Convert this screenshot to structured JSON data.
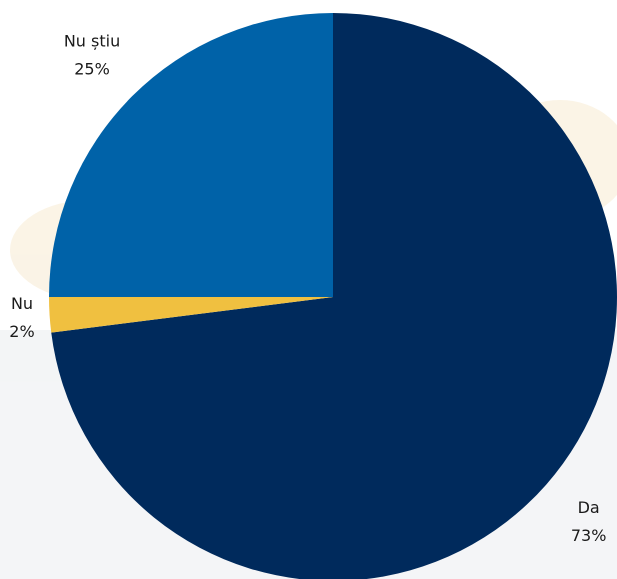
{
  "chart_data": {
    "type": "pie",
    "categories": [
      "Da",
      "Nu",
      "Nu știu"
    ],
    "values": [
      73,
      2,
      25
    ],
    "value_labels": [
      "73%",
      "2%",
      "25%"
    ],
    "colors": [
      "#002a5c",
      "#f0c040",
      "#0062a8"
    ]
  }
}
